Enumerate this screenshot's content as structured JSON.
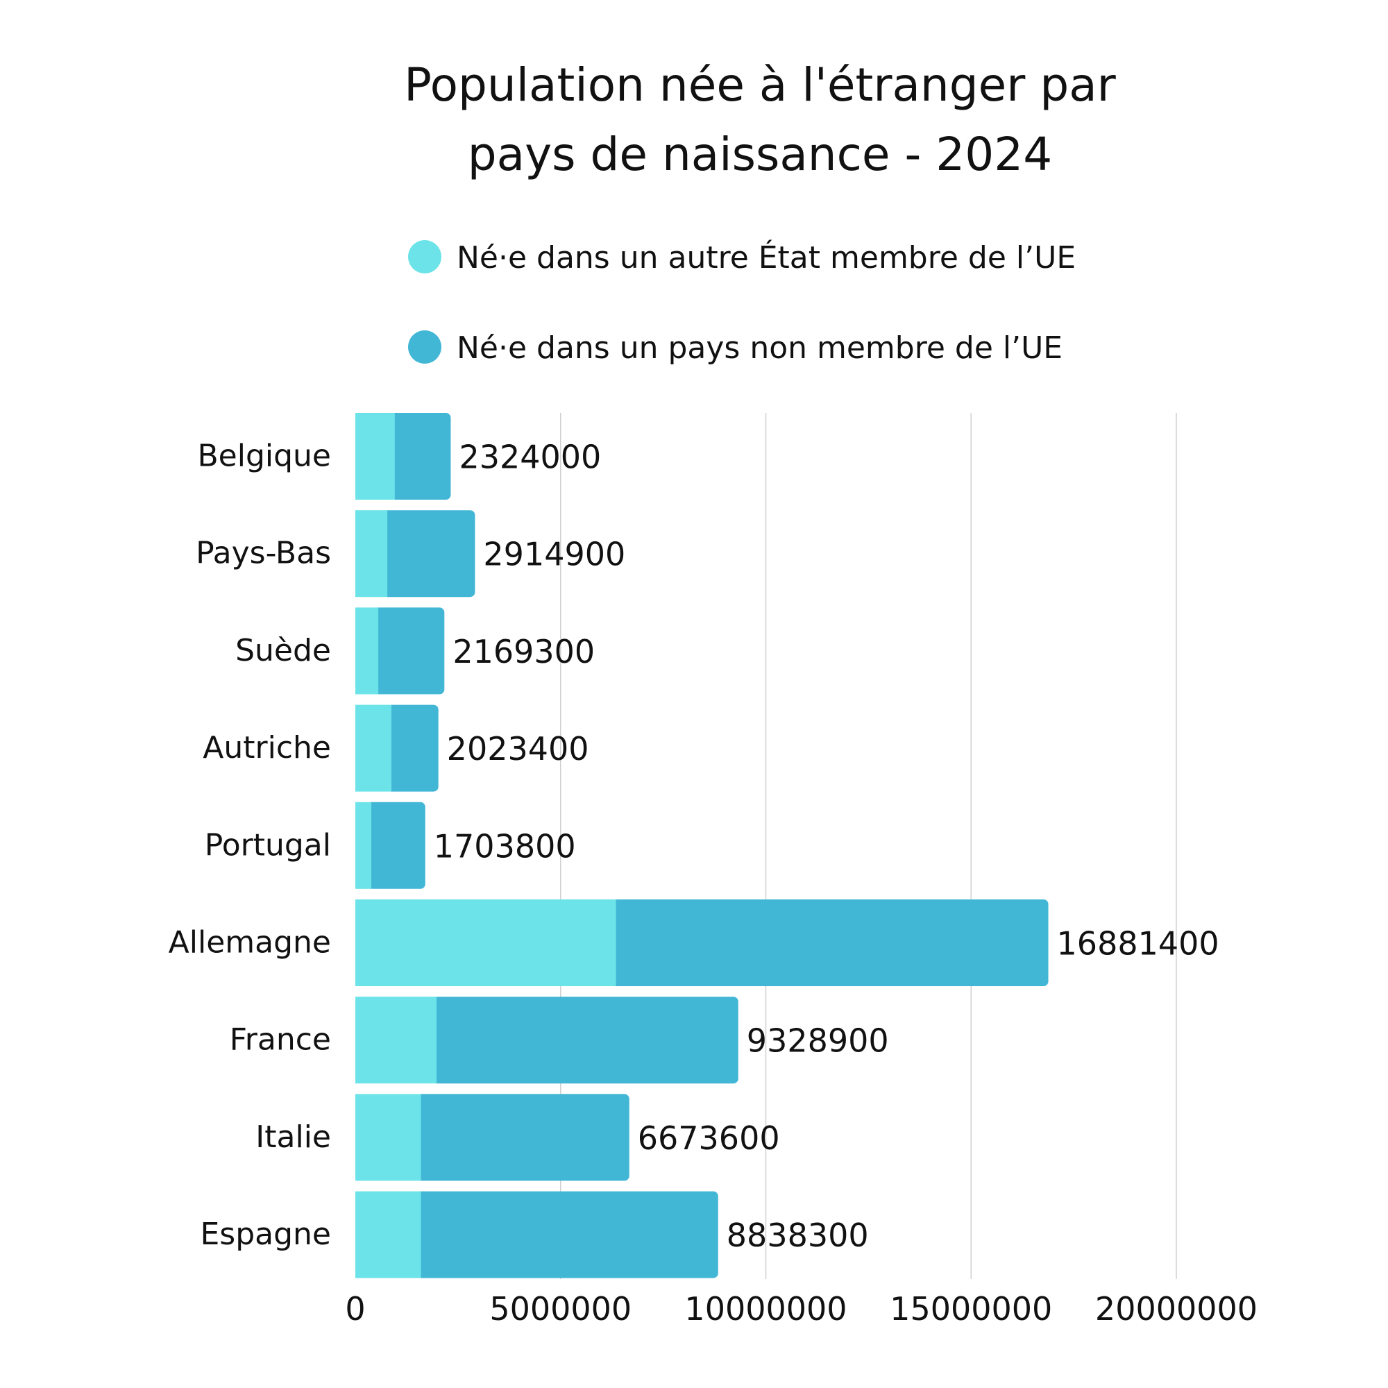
{
  "chart_data": {
    "type": "bar",
    "orientation": "horizontal",
    "stacked": true,
    "title_lines": [
      "Population née à l'étranger par",
      "pays de naissance - 2024"
    ],
    "categories": [
      "Belgique",
      "Pays-Bas",
      "Suède",
      "Autriche",
      "Portugal",
      "Allemagne",
      "France",
      "Italie",
      "Espagne"
    ],
    "series": [
      {
        "name": "Né·e dans un autre État membre de l’UE",
        "color": "#6ce3e8",
        "values": [
          960000,
          780000,
          560000,
          880000,
          390000,
          6350000,
          1980000,
          1600000,
          1600000
        ]
      },
      {
        "name": "Né·e dans un pays non membre de l’UE",
        "color": "#41b6d5",
        "values": [
          1364000,
          2134900,
          1609300,
          1143400,
          1313800,
          10531400,
          7348900,
          5073600,
          7238300
        ]
      }
    ],
    "totals": [
      2324000,
      2914900,
      2169300,
      2023400,
      1703800,
      16881400,
      9328900,
      6673600,
      8838300
    ],
    "total_labels": [
      "2324000",
      "2914900",
      "2169300",
      "2023400",
      "1703800",
      "16881400",
      "9328900",
      "6673600",
      "8838300"
    ],
    "xlim": [
      0,
      20000000
    ],
    "xticks": [
      0,
      5000000,
      10000000,
      15000000,
      20000000
    ],
    "xtick_labels": [
      "0",
      "5000000",
      "10000000",
      "15000000",
      "20000000"
    ],
    "xlabel": "",
    "ylabel": "",
    "grid": "vertical",
    "legend_position": "top"
  }
}
